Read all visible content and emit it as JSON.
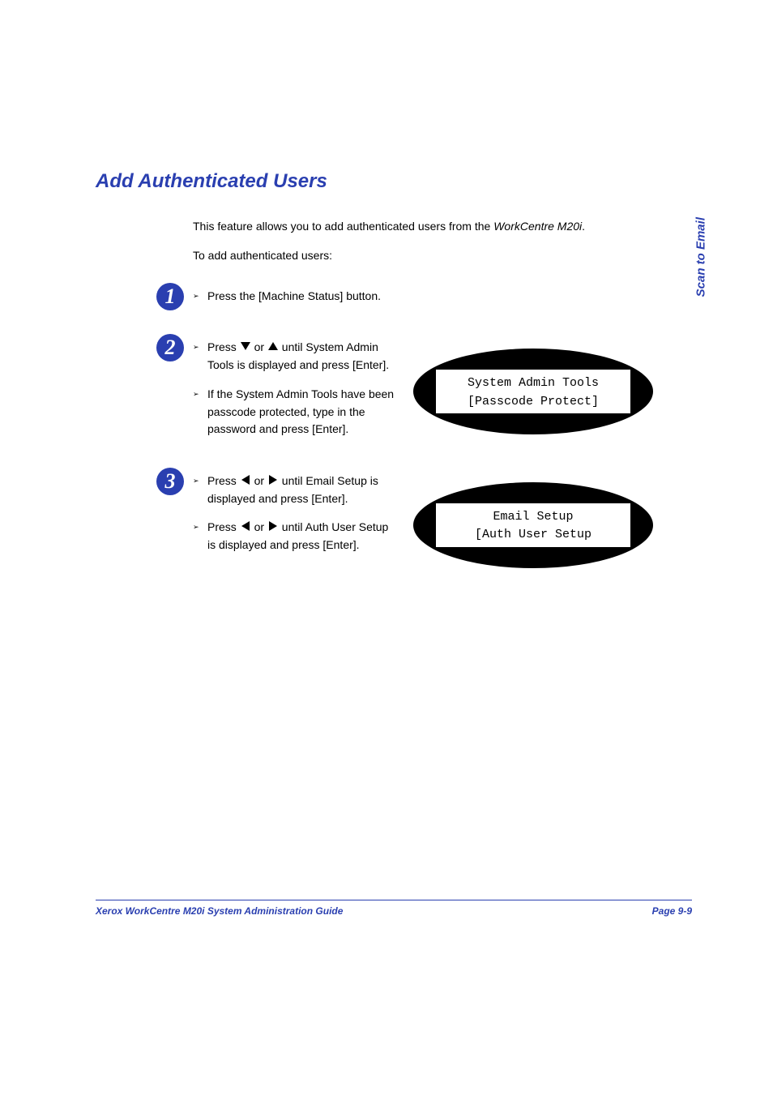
{
  "colors": {
    "brand": "#2a3fb0",
    "text": "#000000",
    "background": "#ffffff",
    "display_bg": "#ffffff",
    "ellipse_fill": "#000000"
  },
  "typography": {
    "body_font": "Arial",
    "body_size_pt": 10.5,
    "heading_size_pt": 18,
    "mono_font": "Courier New",
    "mono_size_pt": 11
  },
  "sidebar": {
    "label": "Scan to Email"
  },
  "heading": "Add Authenticated Users",
  "intro": {
    "line1_prefix": "This feature allows you to add authenticated users from the ",
    "line1_italic": "WorkCentre M20i",
    "line1_suffix": ".",
    "line2": "To add authenticated users:"
  },
  "steps": [
    {
      "num": "1",
      "bullets": [
        {
          "parts": [
            {
              "t": "Press the [Machine Status] button."
            }
          ]
        }
      ],
      "wide": true
    },
    {
      "num": "2",
      "bullets": [
        {
          "parts": [
            {
              "t": "Press  "
            },
            {
              "icon": "down"
            },
            {
              "t": "  or  "
            },
            {
              "icon": "up"
            },
            {
              "t": "  until System Admin Tools is displayed and press [Enter]."
            }
          ]
        },
        {
          "parts": [
            {
              "t": "If the System Admin Tools have been passcode protected, type in the password and press [Enter]."
            }
          ]
        }
      ],
      "display": {
        "line1": "System Admin Tools",
        "line2": "[Passcode Protect]"
      }
    },
    {
      "num": "3",
      "bullets": [
        {
          "parts": [
            {
              "t": "Press  "
            },
            {
              "icon": "left"
            },
            {
              "t": " or  "
            },
            {
              "icon": "right"
            },
            {
              "t": "  until Email Setup is displayed and press [Enter]."
            }
          ]
        },
        {
          "parts": [
            {
              "t": "Press  "
            },
            {
              "icon": "left"
            },
            {
              "t": " or  "
            },
            {
              "icon": "right"
            },
            {
              "t": "  until Auth User Setup is displayed and press [Enter]."
            }
          ]
        }
      ],
      "display": {
        "line1": "Email Setup",
        "line2": "[Auth User Setup"
      }
    }
  ],
  "footer": {
    "left": "Xerox WorkCentre M20i System Administration Guide",
    "right": "Page 9-9"
  }
}
